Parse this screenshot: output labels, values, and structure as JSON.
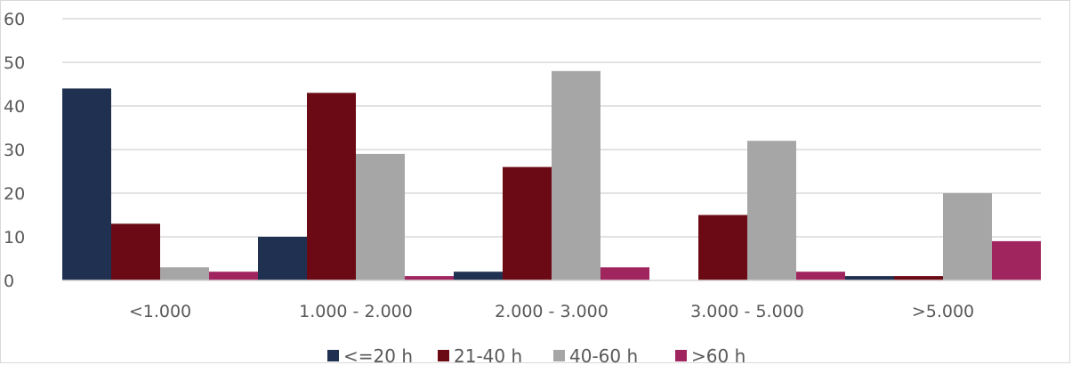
{
  "chart_data": {
    "type": "bar",
    "categories": [
      "<1.000",
      "1.000 - 2.000",
      "2.000 - 3.000",
      "3.000 - 5.000",
      ">5.000"
    ],
    "series": [
      {
        "name": "<=20 h",
        "color": "#203050",
        "values": [
          44,
          10,
          2,
          0,
          1
        ]
      },
      {
        "name": "21-40 h",
        "color": "#6b0a14",
        "values": [
          13,
          43,
          26,
          15,
          1
        ]
      },
      {
        "name": "40-60 h",
        "color": "#a6a6a6",
        "values": [
          3,
          29,
          48,
          32,
          20
        ]
      },
      {
        "name": ">60 h",
        "color": "#a0255f",
        "values": [
          2,
          1,
          3,
          2,
          9
        ]
      }
    ],
    "yticks": [
      "0",
      "10",
      "20",
      "30",
      "40",
      "50",
      "60"
    ],
    "ylim": [
      0,
      60
    ],
    "grid": true,
    "legend": "bottom",
    "title": "",
    "xlabel": "",
    "ylabel": ""
  }
}
